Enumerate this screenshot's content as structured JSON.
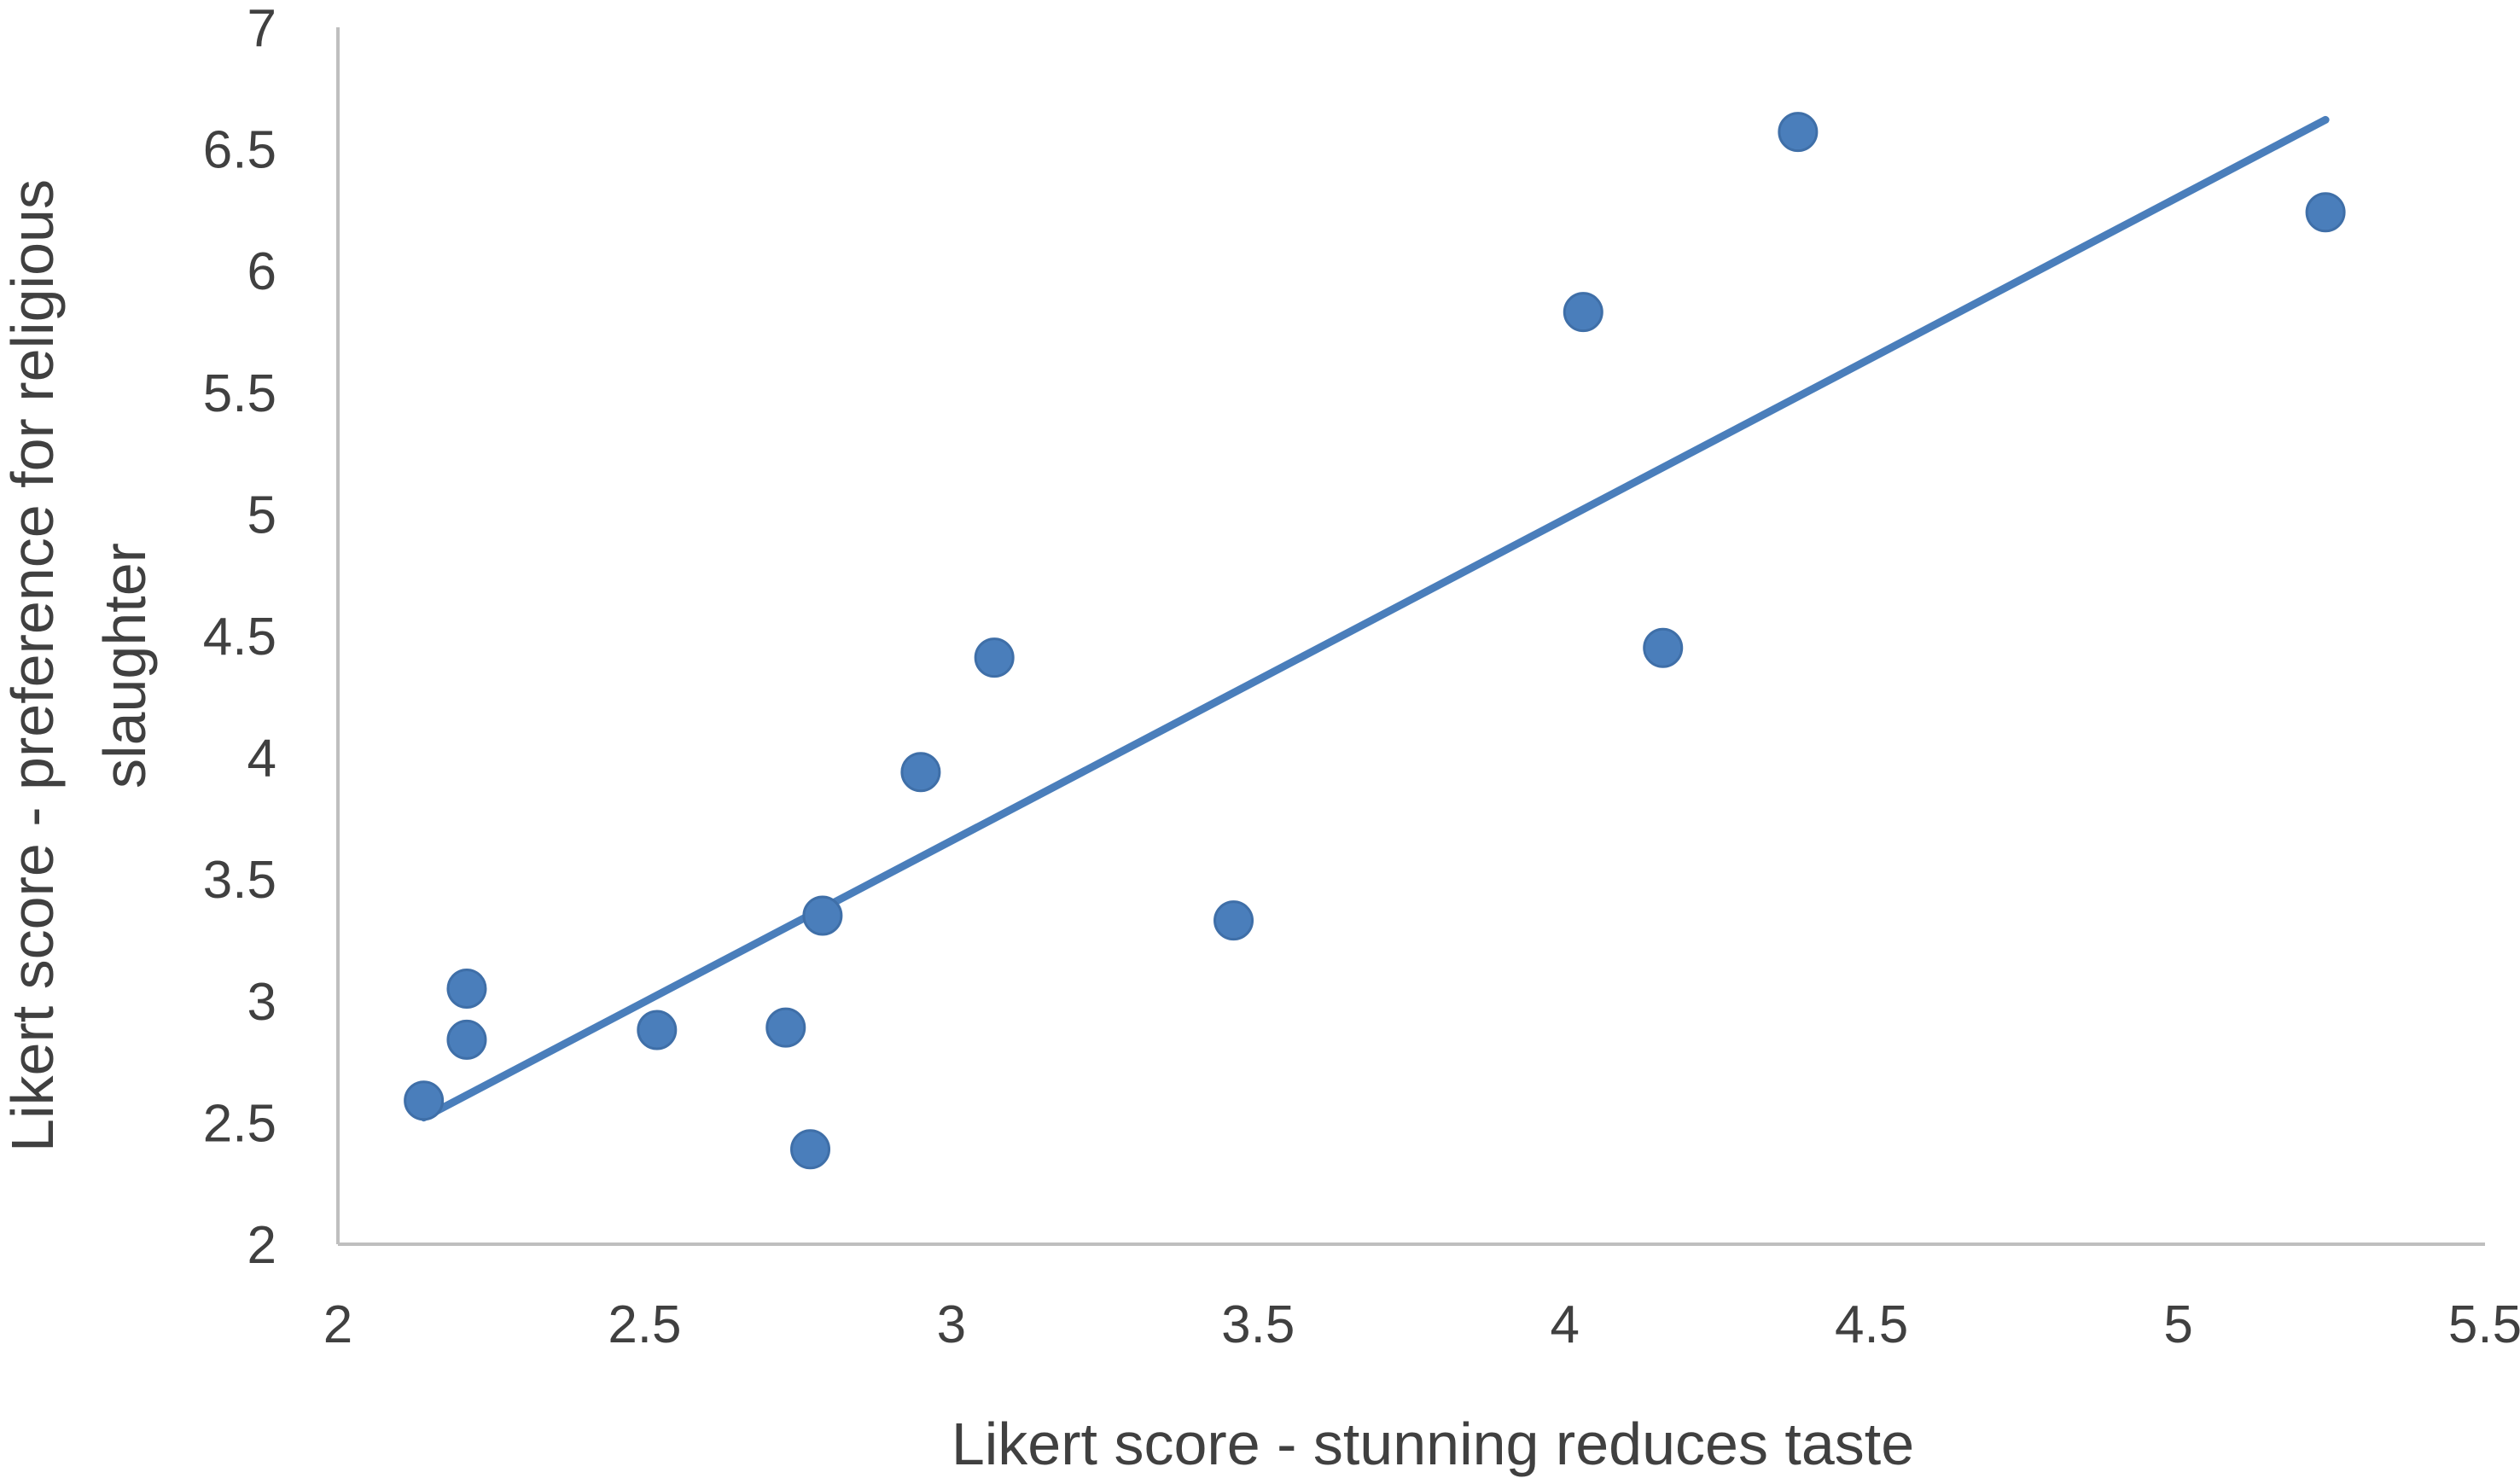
{
  "chart_data": {
    "type": "scatter",
    "xlabel": "Likert score - stunning reduces taste",
    "ylabel_lines": [
      "Likert score - preference for religious",
      "slaughter"
    ],
    "xlim": [
      2,
      5.5
    ],
    "ylim": [
      2,
      7
    ],
    "x_ticks": [
      "2",
      "2.5",
      "3",
      "3.5",
      "4",
      "4.5",
      "5",
      "5.5"
    ],
    "y_ticks": [
      "2",
      "2.5",
      "3",
      "3.5",
      "4",
      "4.5",
      "5",
      "5.5",
      "6",
      "6.5",
      "7"
    ],
    "grid": false,
    "legend": "none",
    "marker_color": "#4A7EBB",
    "line_color": "#4A7EBB",
    "axis_color": "#BFBFBF",
    "text_color": "#404040",
    "points": [
      {
        "x": 2.14,
        "y": 2.59
      },
      {
        "x": 2.21,
        "y": 3.05
      },
      {
        "x": 2.21,
        "y": 2.84
      },
      {
        "x": 2.52,
        "y": 2.88
      },
      {
        "x": 2.73,
        "y": 2.89
      },
      {
        "x": 2.77,
        "y": 2.39
      },
      {
        "x": 2.79,
        "y": 3.35
      },
      {
        "x": 2.95,
        "y": 3.94
      },
      {
        "x": 3.07,
        "y": 4.41
      },
      {
        "x": 3.46,
        "y": 3.33
      },
      {
        "x": 4.03,
        "y": 5.83
      },
      {
        "x": 4.16,
        "y": 4.45
      },
      {
        "x": 4.38,
        "y": 6.57
      },
      {
        "x": 5.24,
        "y": 6.24
      }
    ],
    "trendline": {
      "x": [
        2.14,
        5.24
      ],
      "y": [
        2.52,
        6.62
      ]
    }
  }
}
